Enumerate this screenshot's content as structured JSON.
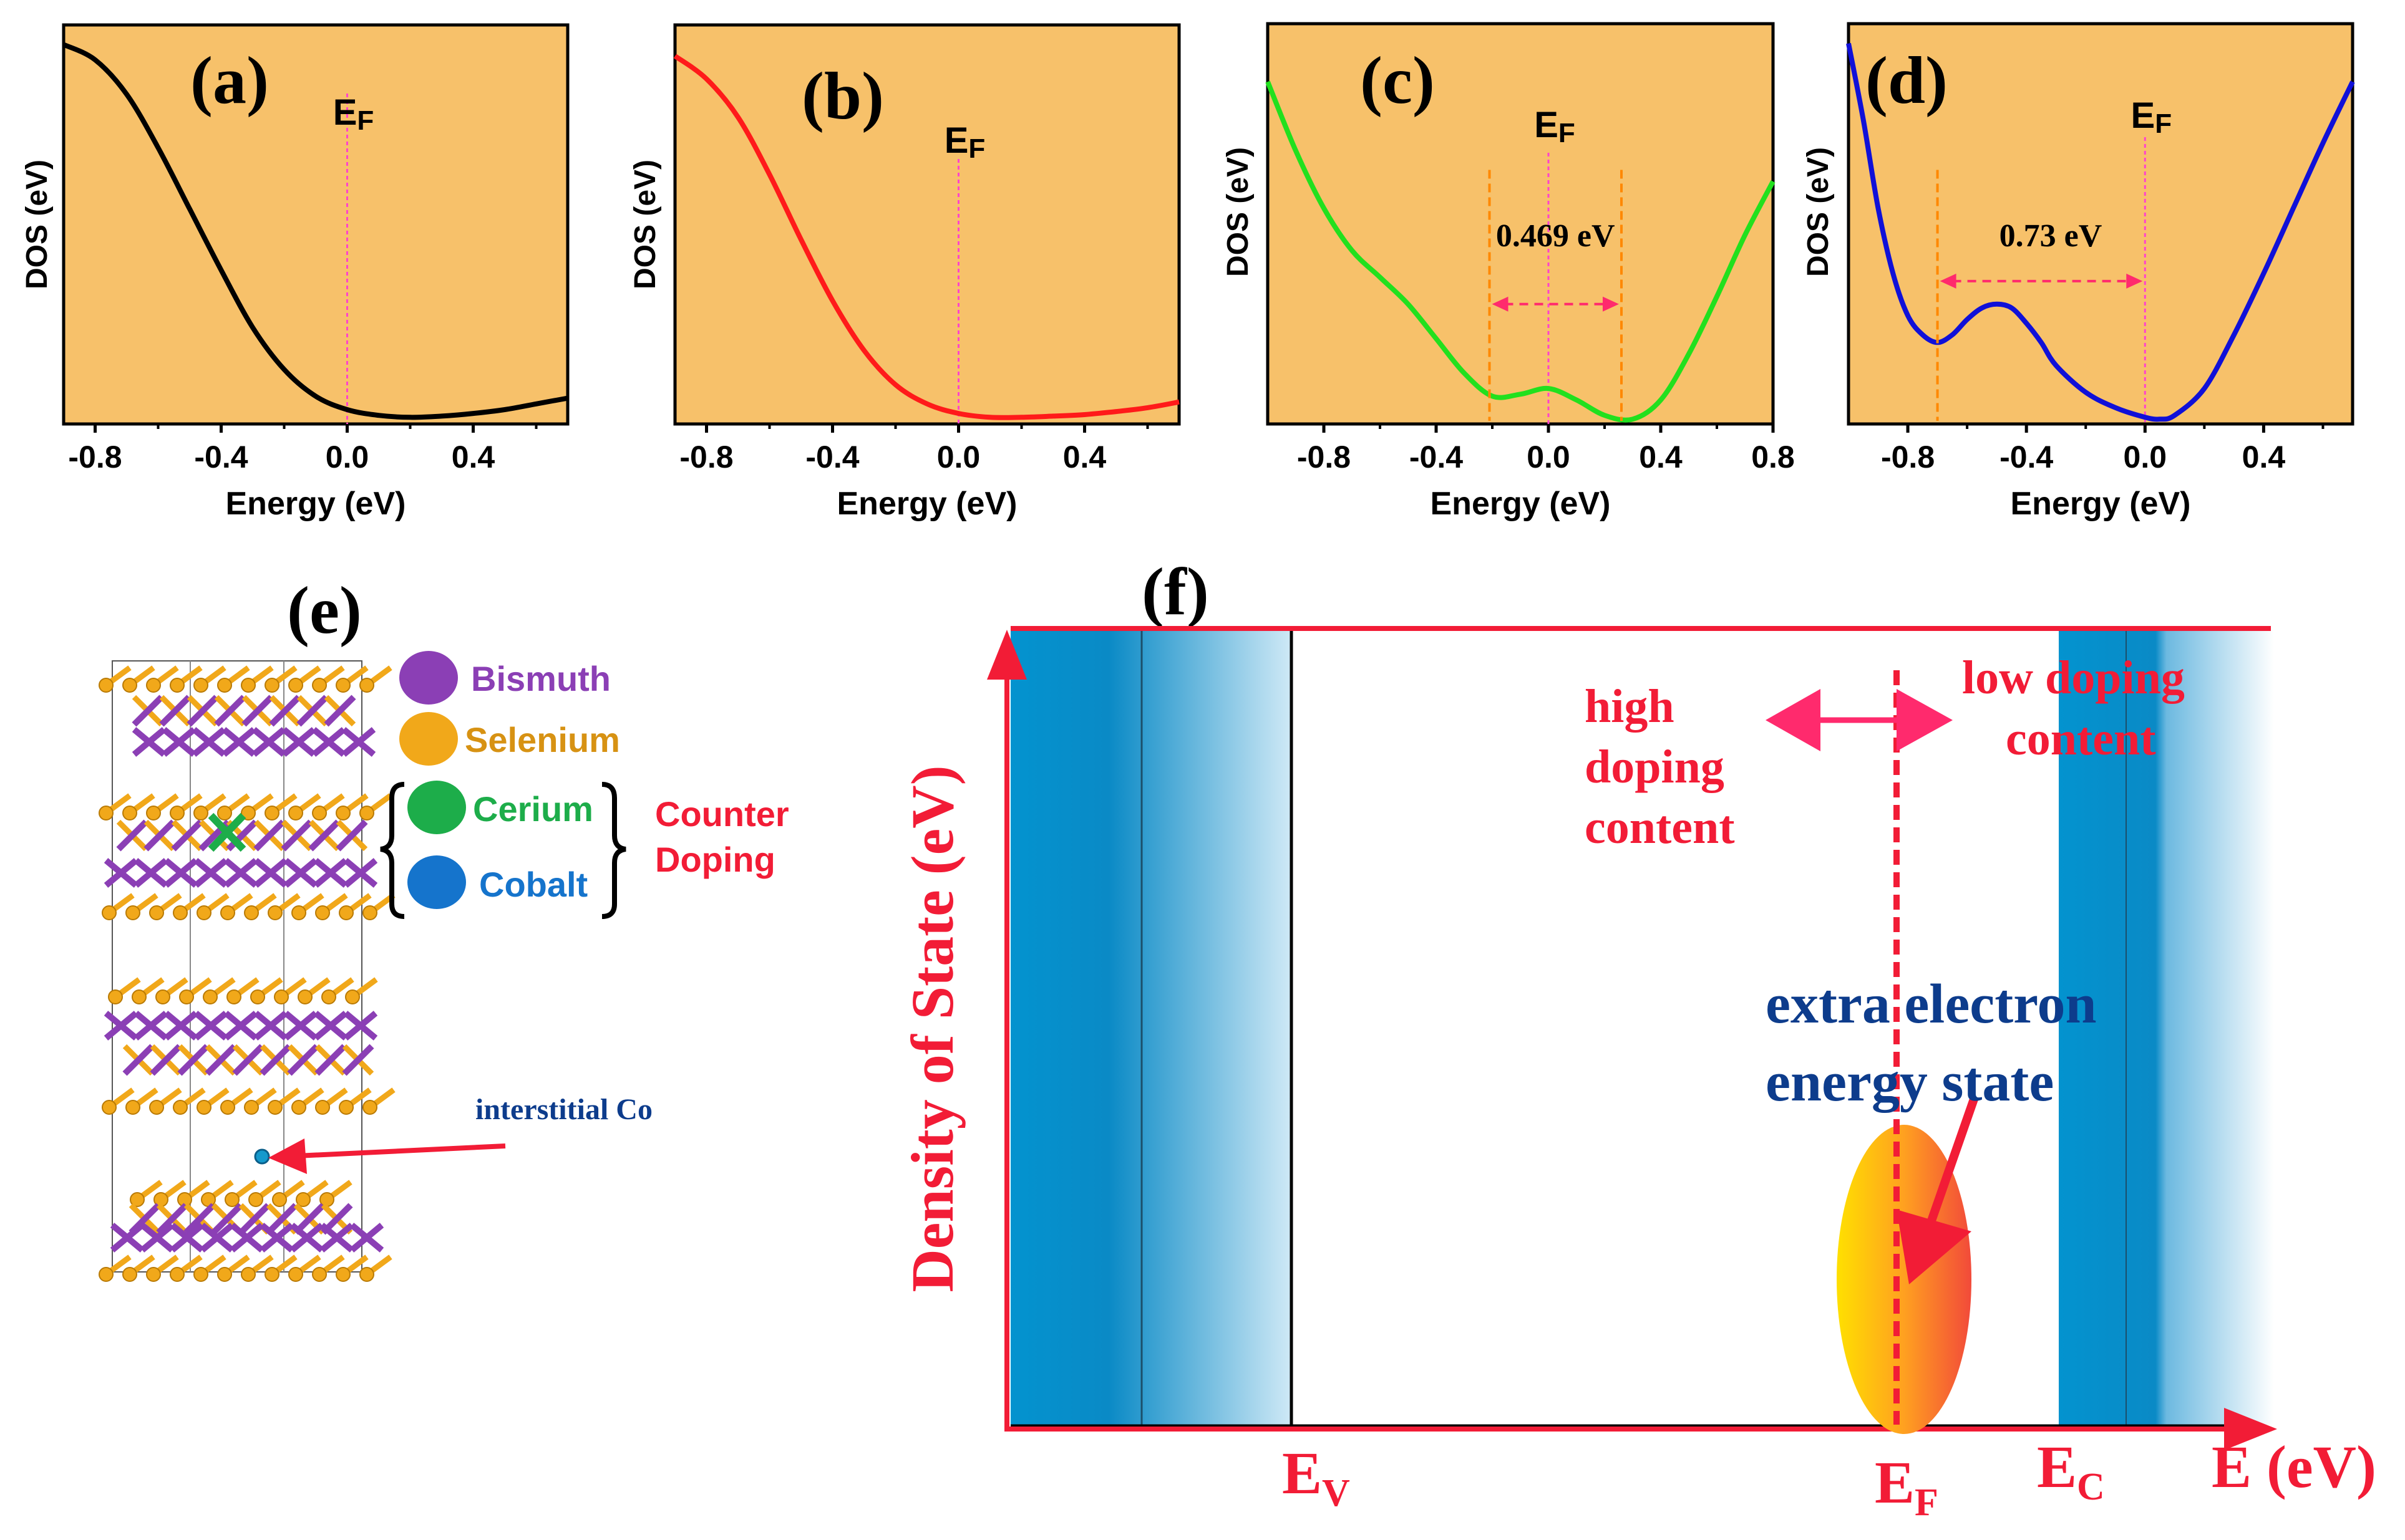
{
  "colors": {
    "plot_bg": "#F7C16A",
    "curve_a": "#000000",
    "curve_b": "#FF1A1A",
    "curve_c": "#22E01E",
    "curve_d": "#1010D8",
    "ef_line": "#FF44CC",
    "marker_dash": "#FF8800",
    "arrow_pink": "#FF2A6D",
    "red": "#F21C36",
    "band_blue": "#0393CF",
    "navy": "#0D3C8C",
    "bismuth": "#8B3FB5",
    "selenium": "#F1A81A",
    "cerium": "#1DAD4A",
    "cobalt": "#1574CC"
  },
  "chart_data": [
    {
      "id": "a",
      "type": "line",
      "panel_label": "(a)",
      "xlabel": "Energy (eV)",
      "ylabel": "DOS (eV)",
      "xlim": [
        -0.9,
        0.7
      ],
      "ylim": [
        0,
        1
      ],
      "xticks": [
        "-0.8",
        "-0.4",
        "0.0",
        "0.4"
      ],
      "xtick_values": [
        -0.8,
        -0.4,
        0.0,
        0.4
      ],
      "ef_label": "E",
      "ef_sub": "F",
      "ef_x": 0.0,
      "series": [
        {
          "name": "DOS",
          "x": [
            -0.9,
            -0.8,
            -0.7,
            -0.6,
            -0.5,
            -0.4,
            -0.3,
            -0.2,
            -0.1,
            0.0,
            0.1,
            0.2,
            0.3,
            0.4,
            0.5,
            0.6,
            0.7
          ],
          "y": [
            0.98,
            0.94,
            0.85,
            0.71,
            0.55,
            0.39,
            0.24,
            0.13,
            0.06,
            0.025,
            0.01,
            0.005,
            0.008,
            0.015,
            0.025,
            0.04,
            0.055
          ]
        }
      ]
    },
    {
      "id": "b",
      "type": "line",
      "panel_label": "(b)",
      "xlabel": "Energy (eV)",
      "ylabel": "DOS (eV)",
      "xlim": [
        -0.9,
        0.7
      ],
      "ylim": [
        0,
        1
      ],
      "xticks": [
        "-0.8",
        "-0.4",
        "0.0",
        "0.4"
      ],
      "xtick_values": [
        -0.8,
        -0.4,
        0.0,
        0.4
      ],
      "ef_label": "E",
      "ef_sub": "F",
      "ef_x": 0.0,
      "series": [
        {
          "name": "DOS",
          "x": [
            -0.9,
            -0.8,
            -0.7,
            -0.6,
            -0.5,
            -0.4,
            -0.3,
            -0.2,
            -0.1,
            0.0,
            0.1,
            0.2,
            0.3,
            0.4,
            0.5,
            0.6,
            0.7
          ],
          "y": [
            0.95,
            0.89,
            0.79,
            0.64,
            0.47,
            0.31,
            0.18,
            0.09,
            0.04,
            0.015,
            0.005,
            0.005,
            0.008,
            0.012,
            0.02,
            0.03,
            0.045
          ]
        }
      ]
    },
    {
      "id": "c",
      "type": "line",
      "panel_label": "(c)",
      "xlabel": "Energy (eV)",
      "ylabel": "DOS (eV)",
      "xlim": [
        -1.0,
        0.8
      ],
      "ylim": [
        0,
        1
      ],
      "xticks": [
        "-0.8",
        "-0.4",
        "0.0",
        "0.4",
        "0.8"
      ],
      "xtick_values": [
        -0.8,
        -0.4,
        0.0,
        0.4,
        0.8
      ],
      "ef_label": "E",
      "ef_sub": "F",
      "ef_x": 0.0,
      "gap_label": "0.469 eV",
      "gap_from": -0.21,
      "gap_to": 0.26,
      "gap_level": 0.3,
      "series": [
        {
          "name": "DOS",
          "x": [
            -1.0,
            -0.9,
            -0.8,
            -0.7,
            -0.6,
            -0.5,
            -0.4,
            -0.3,
            -0.2,
            -0.1,
            0.0,
            0.1,
            0.2,
            0.3,
            0.4,
            0.5,
            0.6,
            0.7,
            0.8
          ],
          "y": [
            0.88,
            0.7,
            0.55,
            0.44,
            0.37,
            0.3,
            0.21,
            0.12,
            0.06,
            0.065,
            0.08,
            0.05,
            0.01,
            0.0,
            0.05,
            0.17,
            0.32,
            0.48,
            0.62
          ]
        }
      ]
    },
    {
      "id": "d",
      "type": "line",
      "panel_label": "(d)",
      "xlabel": "Energy (eV)",
      "ylabel": "DOS (eV)",
      "xlim": [
        -1.0,
        0.7
      ],
      "ylim": [
        0,
        1
      ],
      "xticks": [
        "-0.8",
        "-0.4",
        "0.0",
        "0.4"
      ],
      "xtick_values": [
        -0.8,
        -0.4,
        0.0,
        0.4
      ],
      "ef_label": "E",
      "ef_sub": "F",
      "ef_x": 0.0,
      "gap_label": "0.73 eV",
      "gap_from": -0.7,
      "gap_to": 0.0,
      "gap_level": 0.36,
      "series": [
        {
          "name": "DOS",
          "x": [
            -1.0,
            -0.95,
            -0.9,
            -0.85,
            -0.8,
            -0.75,
            -0.7,
            -0.65,
            -0.6,
            -0.55,
            -0.5,
            -0.45,
            -0.4,
            -0.35,
            -0.3,
            -0.2,
            -0.1,
            0.0,
            0.05,
            0.1,
            0.2,
            0.3,
            0.4,
            0.5,
            0.6,
            0.7
          ],
          "y": [
            0.98,
            0.78,
            0.55,
            0.38,
            0.27,
            0.22,
            0.2,
            0.22,
            0.26,
            0.29,
            0.3,
            0.29,
            0.25,
            0.2,
            0.14,
            0.07,
            0.03,
            0.005,
            0.0,
            0.01,
            0.08,
            0.22,
            0.38,
            0.55,
            0.72,
            0.88
          ]
        }
      ]
    }
  ],
  "panel_e": {
    "label": "(e)",
    "legend": [
      {
        "name": "Bismuth",
        "color_key": "bismuth"
      },
      {
        "name": "Selenium",
        "color_key": "selenium"
      },
      {
        "name": "Cerium",
        "color_key": "cerium"
      },
      {
        "name": "Cobalt",
        "color_key": "cobalt"
      }
    ],
    "counter_line1": "Counter",
    "counter_line2": "Doping",
    "interstitial": "interstitial Co"
  },
  "panel_f": {
    "label": "(f)",
    "ylabel": "Density of State (eV)",
    "high_doping": [
      "high",
      "doping",
      "content"
    ],
    "low_doping": [
      "low doping",
      "content"
    ],
    "extra_state": [
      "extra electron",
      "energy state"
    ],
    "ev": "E",
    "ev_sub": "V",
    "ef": "E",
    "ef_sub": "F",
    "ec": "E",
    "ec_sub": "C",
    "e_axis": "E (eV)"
  }
}
